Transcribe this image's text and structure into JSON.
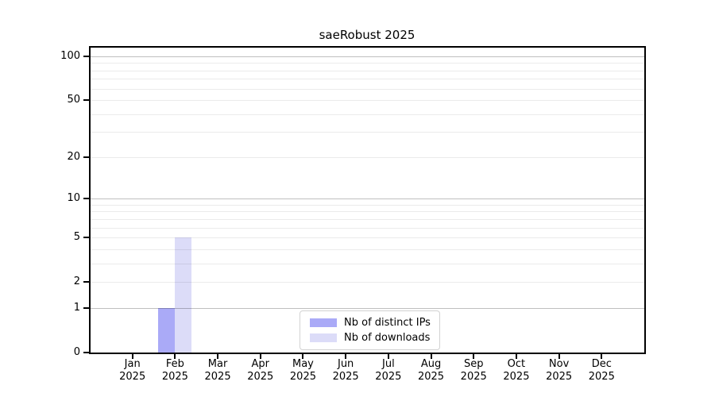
{
  "chart_data": {
    "type": "bar",
    "title": "saeRobust 2025",
    "year": "2025",
    "months": [
      "Jan",
      "Feb",
      "Mar",
      "Apr",
      "May",
      "Jun",
      "Jul",
      "Aug",
      "Sep",
      "Oct",
      "Nov",
      "Dec"
    ],
    "categories": [
      "Jan 2025",
      "Feb 2025",
      "Mar 2025",
      "Apr 2025",
      "May 2025",
      "Jun 2025",
      "Jul 2025",
      "Aug 2025",
      "Sep 2025",
      "Oct 2025",
      "Nov 2025",
      "Dec 2025"
    ],
    "series": [
      {
        "name": "Nb of distinct IPs",
        "color": "#aaaaf7",
        "values": [
          0,
          1,
          0,
          0,
          0,
          0,
          0,
          0,
          0,
          0,
          0,
          0
        ]
      },
      {
        "name": "Nb of downloads",
        "color": "#dcdcf8",
        "values": [
          0,
          5,
          0,
          0,
          0,
          0,
          0,
          0,
          0,
          0,
          0,
          0
        ]
      }
    ],
    "y_axis": {
      "scale": "log1p",
      "ticks": [
        0,
        1,
        2,
        5,
        10,
        20,
        50,
        100
      ],
      "ylim": [
        0,
        116
      ]
    },
    "grid": {
      "major_values": [
        1,
        10,
        100
      ],
      "minor_values": [
        2,
        3,
        4,
        5,
        6,
        7,
        8,
        9,
        20,
        30,
        40,
        50,
        60,
        70,
        80,
        90
      ],
      "major_color": "rgba(0,0,0,0.25)",
      "minor_color": "rgba(0,0,0,0.08)"
    },
    "legend": {
      "position": "lower center",
      "entries": [
        "Nb of distinct IPs",
        "Nb of downloads"
      ]
    }
  }
}
